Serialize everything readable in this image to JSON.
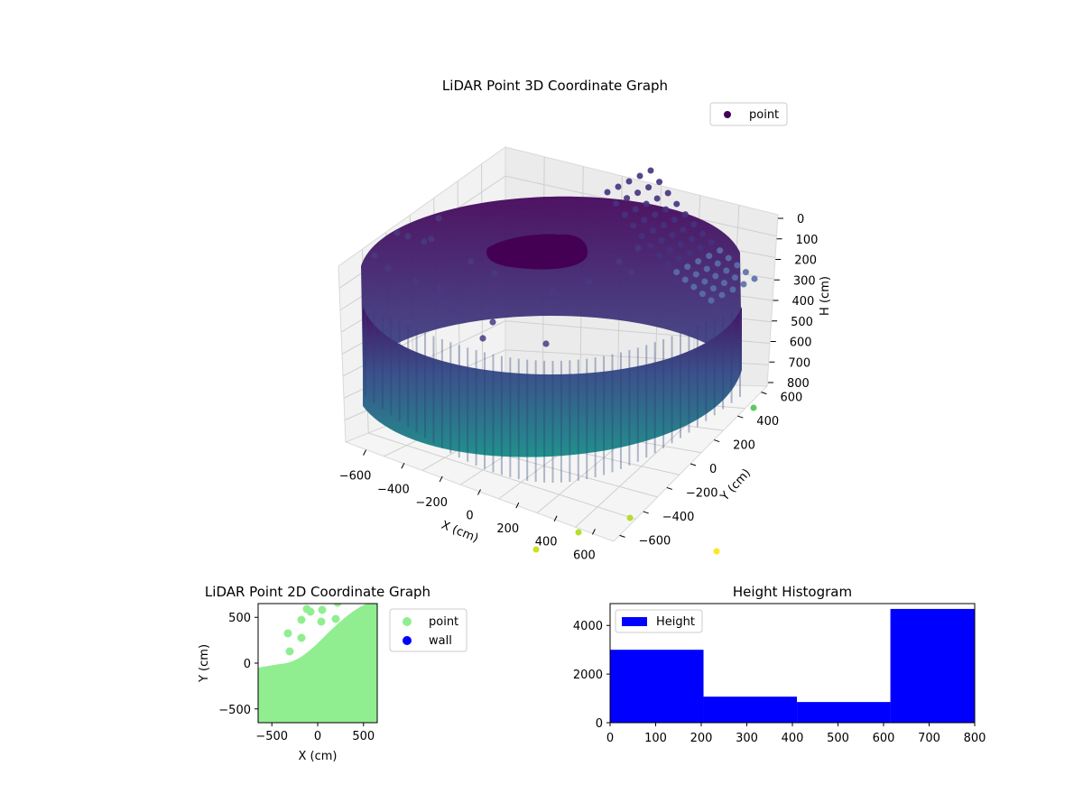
{
  "chart_data": [
    {
      "type": "scatter",
      "projection": "3d",
      "title": "LiDAR Point 3D Coordinate Graph",
      "xlabel": "X (cm)",
      "ylabel": "Y (cm)",
      "zlabel": "H (cm)",
      "xlim": [
        -650,
        650
      ],
      "ylim": [
        -650,
        650
      ],
      "zlim": [
        0,
        800
      ],
      "z_axis_inverted": true,
      "xticks": [
        "−600",
        "−400",
        "−200",
        "0",
        "200",
        "400",
        "600"
      ],
      "yticks": [
        "−600",
        "−400",
        "−200",
        "0",
        "200",
        "400",
        "600"
      ],
      "zticks": [
        "0",
        "100",
        "200",
        "300",
        "400",
        "500",
        "600",
        "700",
        "800"
      ],
      "colormap": "viridis",
      "legend": {
        "position": "top-right",
        "entries": [
          {
            "name": "point",
            "color": "#440154"
          }
        ]
      },
      "grid": true,
      "series": [
        {
          "name": "point",
          "shape": "cylindrical wall",
          "radius": 600,
          "h_range": [
            0,
            800
          ]
        }
      ],
      "outliers": [
        {
          "x": 350,
          "y": -620,
          "h": 900
        },
        {
          "x": 480,
          "y": -560,
          "h": 880
        },
        {
          "x": 600,
          "y": -420,
          "h": 880
        },
        {
          "x": 650,
          "y": 320,
          "h": 830
        },
        {
          "x": 600,
          "y": -650,
          "h": 1050
        }
      ]
    },
    {
      "type": "scatter",
      "title": "LiDAR Point 2D Coordinate Graph",
      "xlabel": "X (cm)",
      "ylabel": "Y (cm)",
      "xlim": [
        -650,
        650
      ],
      "ylim": [
        -650,
        650
      ],
      "xticks": [
        "−500",
        "0",
        "500"
      ],
      "yticks": [
        "−500",
        "0",
        "500"
      ],
      "legend": {
        "position": "outside-right",
        "entries": [
          {
            "name": "point",
            "color": "#90ee90"
          },
          {
            "name": "wall",
            "color": "#0000ff"
          }
        ]
      },
      "series": [
        {
          "name": "point",
          "color": "#90ee90"
        },
        {
          "name": "wall",
          "color": "#0000ff"
        }
      ]
    },
    {
      "type": "bar",
      "subtype": "histogram",
      "title": "Height Histogram",
      "xlim": [
        0,
        800
      ],
      "ylim": [
        0,
        4900
      ],
      "xticks": [
        0,
        100,
        200,
        300,
        400,
        500,
        600,
        700,
        800
      ],
      "yticks": [
        0,
        2000,
        4000
      ],
      "color": "#0000ff",
      "legend": {
        "position": "top-left",
        "entries": [
          {
            "name": "Height",
            "color": "#0000ff"
          }
        ]
      },
      "bins": [
        {
          "start": 0,
          "end": 205,
          "count": 3000
        },
        {
          "start": 205,
          "end": 410,
          "count": 1070
        },
        {
          "start": 410,
          "end": 615,
          "count": 850
        },
        {
          "start": 615,
          "end": 800,
          "count": 4680
        }
      ]
    }
  ]
}
